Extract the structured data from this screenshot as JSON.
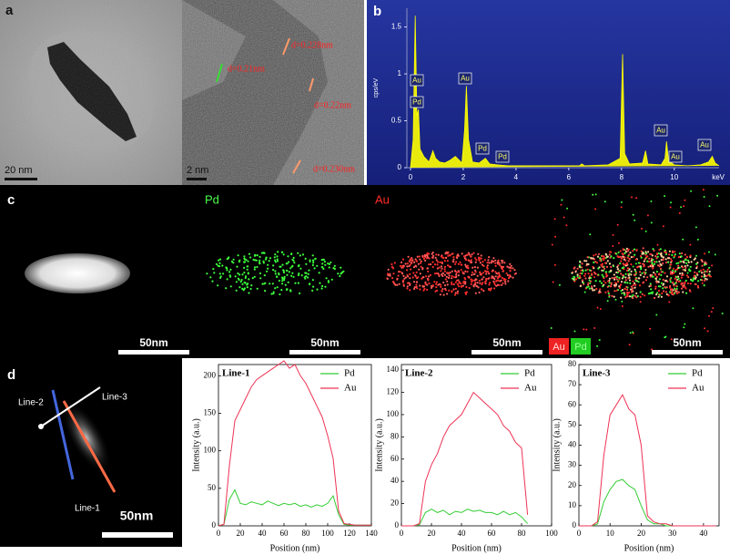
{
  "panels": {
    "a": {
      "label": "a",
      "scale_left": "20 nm",
      "scale_right": "2 nm",
      "d_spacings": [
        "d=0.228nm",
        "d=0.21nm",
        "d=0.22nm",
        "d=0.230nm"
      ]
    },
    "b": {
      "label": "b"
    },
    "c": {
      "label": "c",
      "titles": [
        "Pd",
        "Au"
      ],
      "scale_bars": [
        "50nm",
        "50nm",
        "50nm",
        "50nm"
      ],
      "legend": [
        "Au",
        "Pd"
      ]
    },
    "d": {
      "label": "d",
      "lines": [
        "Line-2",
        "Line-3",
        "Line-1"
      ],
      "scale_bar": "50nm"
    }
  },
  "chart_data": [
    {
      "type": "area",
      "ylabel": "cps/eV",
      "xlabel": "keV",
      "color": "#ffff00",
      "x": [
        0,
        0.1,
        0.18,
        0.24,
        0.3,
        0.36,
        0.5,
        0.7,
        0.85,
        0.95,
        1.1,
        1.3,
        1.5,
        1.7,
        1.95,
        2.05,
        2.12,
        2.2,
        2.35,
        2.6,
        2.84,
        3.0,
        3.3,
        3.7,
        4.5,
        5.5,
        6.4,
        6.5,
        6.6,
        7.5,
        7.95,
        8.04,
        8.12,
        8.3,
        8.8,
        8.91,
        9.0,
        9.5,
        9.65,
        9.71,
        9.78,
        10.0,
        10.5,
        11.0,
        11.3,
        11.44,
        11.55,
        11.7
      ],
      "values": [
        0,
        0.3,
        1.62,
        0.55,
        0.62,
        0.2,
        0.12,
        0.06,
        0.18,
        0.1,
        0.06,
        0.05,
        0.08,
        0.12,
        0.05,
        0.4,
        0.87,
        0.3,
        0.06,
        0.05,
        0.1,
        0.04,
        0.03,
        0.02,
        0.02,
        0.02,
        0.02,
        0.04,
        0.02,
        0.03,
        0.1,
        1.21,
        0.15,
        0.04,
        0.05,
        0.18,
        0.04,
        0.03,
        0.1,
        0.28,
        0.08,
        0.03,
        0.02,
        0.03,
        0.06,
        0.12,
        0.05,
        0.02
      ],
      "xlim": [
        0,
        11.7
      ],
      "xticks": [
        0,
        2,
        4,
        6,
        8,
        10
      ],
      "ylim": [
        0,
        1.7
      ],
      "yticks": [
        0,
        0.5,
        1,
        1.5
      ],
      "annotations": [
        "Au",
        "Pd",
        "Au",
        "Pd",
        "Pd",
        "Au",
        "Au",
        "Au"
      ]
    },
    {
      "type": "line",
      "title": "Line-1",
      "xlabel": "Position (nm)",
      "ylabel": "Intensity (a.u.)",
      "x": [
        0,
        5,
        10,
        15,
        20,
        25,
        30,
        35,
        40,
        45,
        50,
        55,
        60,
        65,
        70,
        75,
        80,
        85,
        90,
        95,
        100,
        105,
        110,
        115,
        120,
        125,
        130,
        135,
        140
      ],
      "series": [
        {
          "name": "Pd",
          "color": "#33cc33",
          "values": [
            0,
            2,
            35,
            48,
            30,
            28,
            32,
            30,
            28,
            33,
            30,
            27,
            30,
            28,
            30,
            26,
            28,
            25,
            28,
            26,
            30,
            40,
            15,
            2,
            1,
            1,
            1,
            1,
            1
          ]
        },
        {
          "name": "Au",
          "color": "#ee3355",
          "values": [
            0,
            2,
            80,
            140,
            155,
            170,
            185,
            195,
            200,
            205,
            210,
            215,
            220,
            210,
            215,
            200,
            190,
            175,
            160,
            145,
            120,
            90,
            20,
            3,
            2,
            1,
            1,
            1,
            1
          ]
        }
      ],
      "xlim": [
        0,
        140
      ],
      "xticks": [
        0,
        20,
        40,
        60,
        80,
        100,
        120,
        140
      ],
      "ylim": [
        0,
        215
      ],
      "yticks": [
        0,
        50,
        100,
        150,
        200
      ]
    },
    {
      "type": "line",
      "title": "Line-2",
      "xlabel": "Position (nm)",
      "ylabel": "Intensity (a.u.)",
      "x": [
        0,
        4,
        8,
        12,
        16,
        20,
        24,
        28,
        32,
        36,
        40,
        44,
        48,
        52,
        56,
        60,
        64,
        68,
        72,
        76,
        80,
        84
      ],
      "series": [
        {
          "name": "Pd",
          "color": "#33cc33",
          "values": [
            0,
            0,
            0,
            1,
            12,
            15,
            12,
            14,
            10,
            13,
            12,
            15,
            13,
            14,
            12,
            12,
            10,
            13,
            10,
            12,
            8,
            2
          ]
        },
        {
          "name": "Au",
          "color": "#ee3355",
          "values": [
            0,
            0,
            0,
            2,
            40,
            55,
            65,
            80,
            90,
            95,
            100,
            110,
            120,
            115,
            110,
            105,
            100,
            90,
            85,
            75,
            70,
            10
          ]
        }
      ],
      "xlim": [
        0,
        100
      ],
      "xticks": [
        0,
        20,
        40,
        60,
        80,
        100
      ],
      "ylim": [
        0,
        145
      ],
      "yticks": [
        0,
        20,
        40,
        60,
        80,
        100,
        120,
        140
      ]
    },
    {
      "type": "line",
      "title": "Line-3",
      "xlabel": "Position (nm)",
      "ylabel": "Intensity (a.u.)",
      "x": [
        0,
        2,
        4,
        6,
        8,
        10,
        12,
        14,
        16,
        18,
        20,
        22,
        24,
        26,
        28,
        30,
        32,
        34,
        36,
        38,
        40,
        42,
        44
      ],
      "series": [
        {
          "name": "Pd",
          "color": "#33cc33",
          "values": [
            0,
            0,
            0,
            1,
            12,
            18,
            22,
            23,
            20,
            18,
            10,
            3,
            1,
            1,
            0,
            0,
            0,
            0,
            0,
            0,
            0,
            0,
            0
          ]
        },
        {
          "name": "Au",
          "color": "#ee3355",
          "values": [
            0,
            0,
            0,
            2,
            35,
            55,
            60,
            65,
            58,
            55,
            40,
            5,
            2,
            1,
            1,
            0,
            0,
            0,
            0,
            0,
            0,
            0,
            0
          ]
        }
      ],
      "xlim": [
        0,
        45
      ],
      "xticks": [
        0,
        10,
        20,
        30,
        40
      ],
      "ylim": [
        0,
        80
      ],
      "yticks": [
        0,
        10,
        20,
        30,
        40,
        50,
        60,
        70,
        80
      ]
    }
  ]
}
